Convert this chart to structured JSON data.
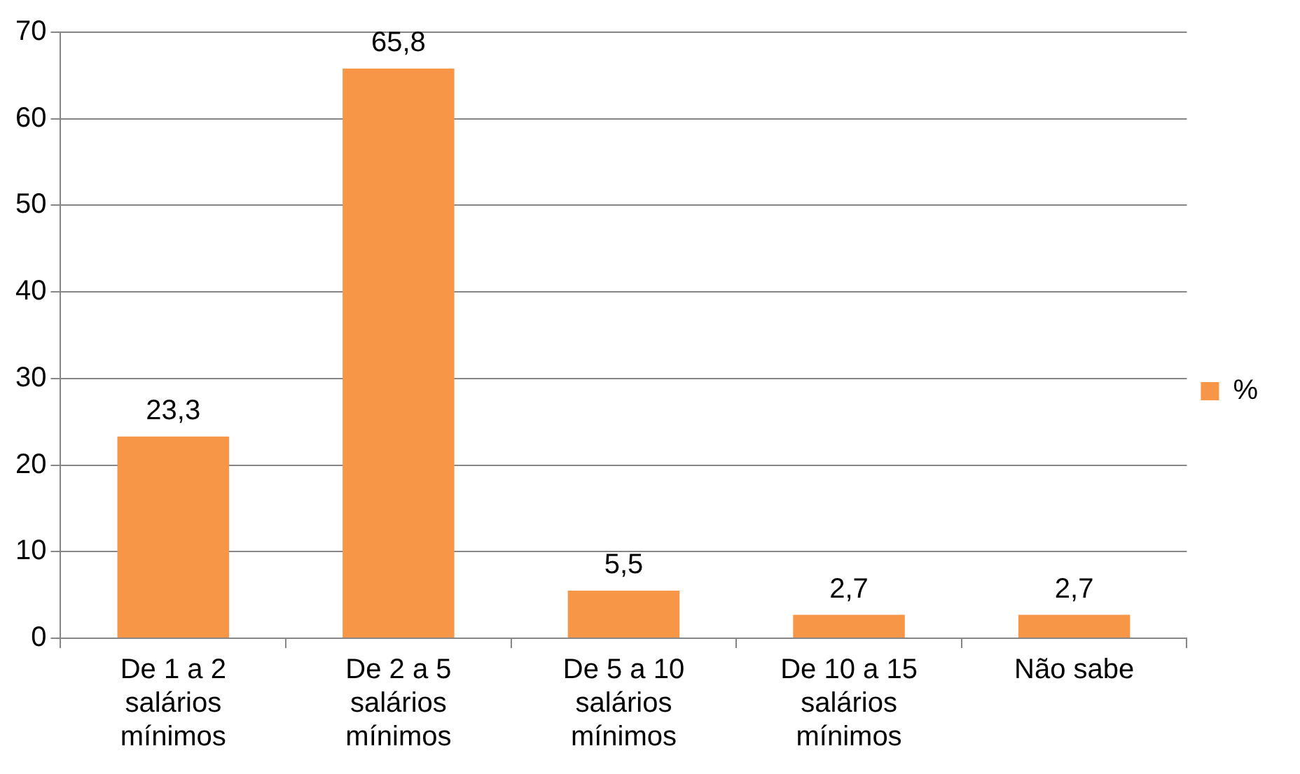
{
  "chart_data": {
    "type": "bar",
    "categories": [
      "De 1 a 2 salários mínimos",
      "De 2 a 5 salários mínimos",
      "De 5 a 10 salários mínimos",
      "De 10 a 15 salários mínimos",
      "Não sabe"
    ],
    "series": [
      {
        "name": "%",
        "color": "#f79646",
        "values": [
          23.3,
          65.8,
          5.5,
          2.7,
          2.7
        ]
      }
    ],
    "value_labels": [
      "23,3",
      "65,8",
      "5,5",
      "2,7",
      "2,7"
    ],
    "ylim": [
      0,
      70
    ],
    "yticks": [
      0,
      10,
      20,
      30,
      40,
      50,
      60,
      70
    ],
    "grid": "y",
    "legend": "right"
  }
}
